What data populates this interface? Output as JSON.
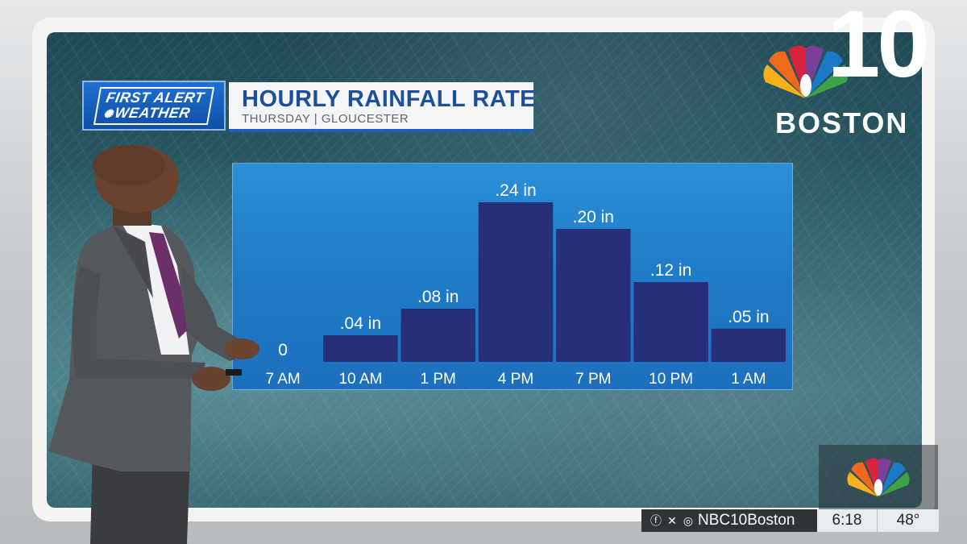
{
  "brand": {
    "line1": "FIRST ALERT",
    "line2": "WEATHER"
  },
  "header": {
    "title": "HOURLY RAINFALL RATE",
    "subtitle": "THURSDAY | GLOUCESTER"
  },
  "chart_data": {
    "type": "bar",
    "categories": [
      "7 AM",
      "10 AM",
      "1 PM",
      "4 PM",
      "7 PM",
      "10 PM",
      "1 AM"
    ],
    "values": [
      0,
      0.04,
      0.08,
      0.24,
      0.2,
      0.12,
      0.05
    ],
    "value_labels": [
      "0",
      ".04 in",
      ".08 in",
      ".24 in",
      ".20 in",
      ".12 in",
      ".05 in"
    ],
    "title": "HOURLY RAINFALL RATE",
    "xlabel": "",
    "ylabel": "",
    "ylim": [
      0,
      0.24
    ],
    "grid": false,
    "colors": {
      "bar": "#272f7a",
      "panel": "#1f7dc9"
    }
  },
  "station": {
    "number": "10",
    "city": "BOSTON",
    "icon": "peacock-icon"
  },
  "ticker": {
    "social_handle": "NBC10Boston",
    "social_icons": [
      "facebook-icon",
      "x-icon",
      "instagram-icon"
    ],
    "time": "6:18",
    "temperature": "48°"
  }
}
